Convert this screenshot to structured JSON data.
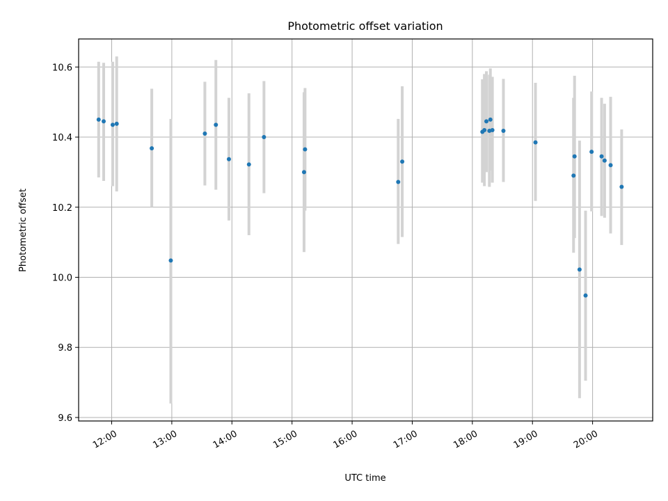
{
  "chart_data": {
    "type": "scatter",
    "title": "Photometric offset variation",
    "xlabel": "UTC time",
    "ylabel": "Photometric offset",
    "x_ticks": [
      "12:00",
      "13:00",
      "14:00",
      "15:00",
      "16:00",
      "17:00",
      "18:00",
      "19:00",
      "20:00"
    ],
    "y_ticks": [
      "9.6",
      "9.8",
      "10.0",
      "10.2",
      "10.4",
      "10.6"
    ],
    "xlim": [
      "11:27",
      "21:00"
    ],
    "ylim": [
      9.59,
      10.68
    ],
    "grid": true,
    "marker_color": "#1f77b4",
    "errorbar_color": "#d3d3d3",
    "points": [
      {
        "x": "11:47",
        "y": 10.45,
        "low": 10.285,
        "high": 10.615
      },
      {
        "x": "11:52",
        "y": 10.445,
        "low": 10.275,
        "high": 10.612
      },
      {
        "x": "12:01",
        "y": 10.435,
        "low": 10.26,
        "high": 10.615
      },
      {
        "x": "12:05",
        "y": 10.438,
        "low": 10.245,
        "high": 10.63
      },
      {
        "x": "12:40",
        "y": 10.368,
        "low": 10.2,
        "high": 10.538
      },
      {
        "x": "12:59",
        "y": 10.048,
        "low": 9.64,
        "high": 10.452
      },
      {
        "x": "13:33",
        "y": 10.41,
        "low": 10.262,
        "high": 10.558
      },
      {
        "x": "13:44",
        "y": 10.435,
        "low": 10.25,
        "high": 10.62
      },
      {
        "x": "13:57",
        "y": 10.337,
        "low": 10.162,
        "high": 10.512
      },
      {
        "x": "14:17",
        "y": 10.322,
        "low": 10.12,
        "high": 10.525
      },
      {
        "x": "14:32",
        "y": 10.4,
        "low": 10.24,
        "high": 10.56
      },
      {
        "x": "15:12",
        "y": 10.3,
        "low": 10.072,
        "high": 10.528
      },
      {
        "x": "15:13",
        "y": 10.365,
        "low": 10.19,
        "high": 10.54
      },
      {
        "x": "16:46",
        "y": 10.272,
        "low": 10.095,
        "high": 10.452
      },
      {
        "x": "16:50",
        "y": 10.33,
        "low": 10.115,
        "high": 10.545
      },
      {
        "x": "18:10",
        "y": 10.415,
        "low": 10.27,
        "high": 10.565
      },
      {
        "x": "18:12",
        "y": 10.42,
        "low": 10.26,
        "high": 10.58
      },
      {
        "x": "18:14",
        "y": 10.445,
        "low": 10.3,
        "high": 10.588
      },
      {
        "x": "18:17",
        "y": 10.418,
        "low": 10.258,
        "high": 10.578
      },
      {
        "x": "18:18",
        "y": 10.45,
        "low": 10.305,
        "high": 10.596
      },
      {
        "x": "18:20",
        "y": 10.42,
        "low": 10.27,
        "high": 10.572
      },
      {
        "x": "18:31",
        "y": 10.418,
        "low": 10.272,
        "high": 10.566
      },
      {
        "x": "19:03",
        "y": 10.385,
        "low": 10.218,
        "high": 10.555
      },
      {
        "x": "19:41",
        "y": 10.29,
        "low": 10.07,
        "high": 10.512
      },
      {
        "x": "19:42",
        "y": 10.345,
        "low": 10.112,
        "high": 10.575
      },
      {
        "x": "19:47",
        "y": 10.022,
        "low": 9.655,
        "high": 10.39
      },
      {
        "x": "19:53",
        "y": 9.948,
        "low": 9.705,
        "high": 10.19
      },
      {
        "x": "19:59",
        "y": 10.358,
        "low": 10.188,
        "high": 10.53
      },
      {
        "x": "20:09",
        "y": 10.345,
        "low": 10.175,
        "high": 10.512
      },
      {
        "x": "20:12",
        "y": 10.333,
        "low": 10.17,
        "high": 10.495
      },
      {
        "x": "20:18",
        "y": 10.32,
        "low": 10.125,
        "high": 10.515
      },
      {
        "x": "20:29",
        "y": 10.258,
        "low": 10.092,
        "high": 10.422
      }
    ]
  }
}
